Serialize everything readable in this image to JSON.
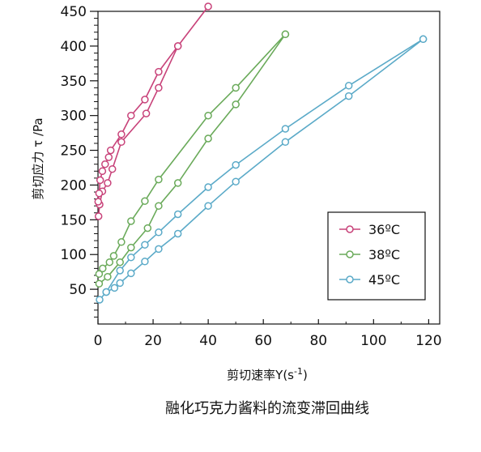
{
  "chart_data": {
    "type": "line",
    "caption": "融化巧克力酱料的流变滞回曲线",
    "xlabel": "剪切速率Y(s",
    "xlabel_sup": "-1",
    "xlabel_close": ")",
    "ylabel": "剪切应力  τ /Pa",
    "xlim": [
      0,
      124
    ],
    "ylim": [
      0,
      450
    ],
    "x_ticks": [
      0,
      20,
      40,
      60,
      80,
      100,
      120
    ],
    "y_ticks": [
      50,
      100,
      150,
      200,
      250,
      300,
      350,
      400,
      450
    ],
    "x_tick_labels": [
      "0",
      "20",
      "40",
      "60",
      "80",
      "100",
      "120"
    ],
    "y_tick_labels": [
      "50",
      "100",
      "150",
      "200",
      "250",
      "300",
      "350",
      "400",
      "450"
    ],
    "grid": false,
    "legend_position": "lower-right",
    "series": [
      {
        "name": "36ºC",
        "color": "#c8437a",
        "curves": [
          [
            [
              0.2,
              155
            ],
            [
              0.6,
              172
            ],
            [
              1.6,
              191
            ],
            [
              3.5,
              203
            ],
            [
              5.2,
              223
            ],
            [
              8.5,
              262
            ],
            [
              17.5,
              303
            ],
            [
              22,
              340
            ],
            [
              29,
              400
            ]
          ],
          [
            [
              0.1,
              176
            ],
            [
              0.4,
              188
            ],
            [
              0.8,
              207
            ],
            [
              1.6,
              220
            ],
            [
              2.6,
              230
            ],
            [
              3.9,
              240
            ],
            [
              4.6,
              250
            ],
            [
              8.5,
              273
            ],
            [
              12,
              300
            ],
            [
              17,
              323
            ],
            [
              22,
              363
            ],
            [
              29,
              400
            ],
            [
              40,
              457
            ]
          ]
        ]
      },
      {
        "name": "38ºC",
        "color": "#6aaa5a",
        "curves": [
          [
            [
              0.4,
              58
            ],
            [
              3.5,
              68
            ],
            [
              8,
              89
            ],
            [
              12,
              110
            ],
            [
              18,
              138
            ],
            [
              22,
              170
            ],
            [
              29,
              203
            ],
            [
              40,
              267
            ],
            [
              50,
              316
            ],
            [
              68,
              417
            ]
          ],
          [
            [
              0.4,
              72
            ],
            [
              1.7,
              80
            ],
            [
              4.2,
              89
            ],
            [
              5.7,
              98
            ],
            [
              8.5,
              118
            ],
            [
              12,
              148
            ],
            [
              17,
              177
            ],
            [
              22,
              208
            ],
            [
              40,
              300
            ],
            [
              50,
              340
            ],
            [
              68,
              417
            ]
          ]
        ]
      },
      {
        "name": "45ºC",
        "color": "#5baac8",
        "curves": [
          [
            [
              0.6,
              35
            ],
            [
              3,
              46
            ],
            [
              6,
              52
            ],
            [
              8,
              59
            ],
            [
              12,
              73
            ],
            [
              17,
              90
            ],
            [
              22,
              108
            ],
            [
              29,
              130
            ],
            [
              40,
              170
            ],
            [
              50,
              205
            ],
            [
              68,
              262
            ],
            [
              91,
              328
            ],
            [
              118,
              410
            ]
          ],
          [
            [
              3,
              46
            ],
            [
              8,
              77
            ],
            [
              12,
              96
            ],
            [
              17,
              114
            ],
            [
              22,
              132
            ],
            [
              29,
              158
            ],
            [
              40,
              197
            ],
            [
              50,
              229
            ],
            [
              68,
              281
            ],
            [
              91,
              343
            ],
            [
              118,
              410
            ]
          ]
        ]
      }
    ]
  }
}
